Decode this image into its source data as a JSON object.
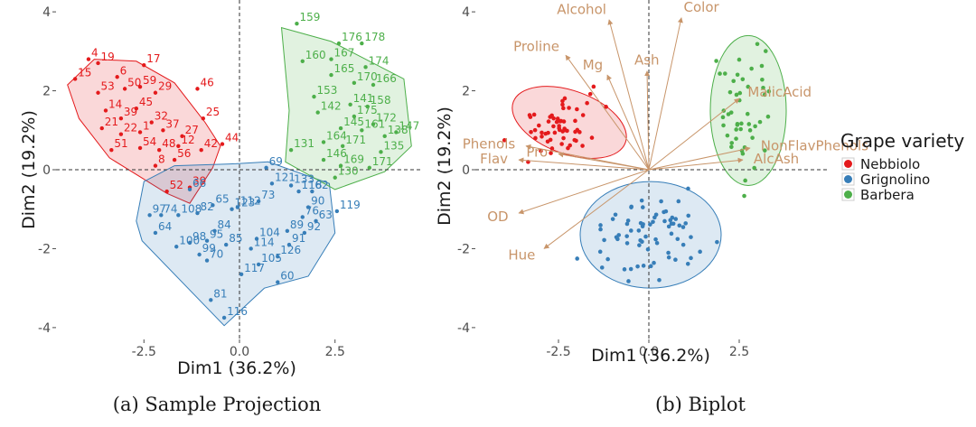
{
  "colors": {
    "nebbiolo": "#e41a1c",
    "grignolino": "#377eb8",
    "barbera": "#4daf4a",
    "arrow": "#c8956a"
  },
  "chart_data": [
    {
      "type": "scatter",
      "title": "",
      "caption": "(a) Sample Projection",
      "xlabel": "Dim1 (36.2%)",
      "ylabel": "Dim2 (19.2%)",
      "xlim": [
        -4.8,
        4.8
      ],
      "ylim": [
        -4.3,
        4.3
      ],
      "x_ticks": [
        -2.5,
        0.0,
        2.5
      ],
      "x_tick_labels": [
        "-2.5",
        "0.0",
        "2.5"
      ],
      "y_ticks": [
        4,
        2,
        0,
        -2,
        -4
      ],
      "y_tick_labels": [
        "4",
        "2",
        "0",
        "-2",
        "-4"
      ],
      "groups": [
        {
          "name": "Nebbiolo",
          "color": "#e41a1c",
          "hull": [
            [
              -4.5,
              2.15
            ],
            [
              -3.8,
              2.8
            ],
            [
              -2.7,
              2.75
            ],
            [
              -1.7,
              2.2
            ],
            [
              -0.9,
              1.2
            ],
            [
              -0.5,
              0.6
            ],
            [
              -0.7,
              0.05
            ],
            [
              -1.3,
              -0.85
            ],
            [
              -1.9,
              -0.6
            ],
            [
              -3.4,
              0.3
            ],
            [
              -4.2,
              1.3
            ]
          ],
          "labeled_points": [
            {
              "x": -4.3,
              "y": 2.3,
              "label": "15"
            },
            {
              "x": -3.95,
              "y": 2.8,
              "label": "4"
            },
            {
              "x": -3.7,
              "y": 2.7,
              "label": "19"
            },
            {
              "x": -3.2,
              "y": 2.35,
              "label": "6"
            },
            {
              "x": -2.5,
              "y": 2.65,
              "label": "17"
            },
            {
              "x": -1.1,
              "y": 2.05,
              "label": "46"
            },
            {
              "x": -3.7,
              "y": 1.95,
              "label": "53"
            },
            {
              "x": -3.0,
              "y": 2.05,
              "label": "50"
            },
            {
              "x": -2.6,
              "y": 2.1,
              "label": "59"
            },
            {
              "x": -2.2,
              "y": 1.95,
              "label": "29"
            },
            {
              "x": -3.5,
              "y": 1.5,
              "label": "14"
            },
            {
              "x": -3.1,
              "y": 1.3,
              "label": "39"
            },
            {
              "x": -2.7,
              "y": 1.55,
              "label": "45"
            },
            {
              "x": -2.3,
              "y": 1.2,
              "label": "32"
            },
            {
              "x": -0.95,
              "y": 1.3,
              "label": "25"
            },
            {
              "x": -3.6,
              "y": 1.05,
              "label": "21"
            },
            {
              "x": -3.1,
              "y": 0.9,
              "label": "22"
            },
            {
              "x": -2.6,
              "y": 0.95,
              "label": "1"
            },
            {
              "x": -2.0,
              "y": 1.0,
              "label": "37"
            },
            {
              "x": -1.5,
              "y": 0.85,
              "label": "27"
            },
            {
              "x": -0.45,
              "y": 0.65,
              "label": "44"
            },
            {
              "x": -3.35,
              "y": 0.5,
              "label": "51"
            },
            {
              "x": -2.6,
              "y": 0.55,
              "label": "54"
            },
            {
              "x": -2.1,
              "y": 0.5,
              "label": "48"
            },
            {
              "x": -1.6,
              "y": 0.6,
              "label": "12"
            },
            {
              "x": -1.0,
              "y": 0.5,
              "label": "42"
            },
            {
              "x": -1.7,
              "y": 0.25,
              "label": "56"
            },
            {
              "x": -1.3,
              "y": -0.45,
              "label": "39"
            },
            {
              "x": -1.9,
              "y": -0.55,
              "label": "52"
            },
            {
              "x": -2.2,
              "y": 0.1,
              "label": "8"
            }
          ]
        },
        {
          "name": "Grignolino",
          "color": "#377eb8",
          "hull": [
            [
              -2.5,
              -0.3
            ],
            [
              -1.7,
              0.1
            ],
            [
              -0.1,
              0.15
            ],
            [
              0.75,
              0.2
            ],
            [
              2.35,
              -0.35
            ],
            [
              2.5,
              -1.6
            ],
            [
              1.8,
              -2.7
            ],
            [
              0.65,
              -3.0
            ],
            [
              -0.4,
              -3.95
            ],
            [
              -2.55,
              -1.8
            ],
            [
              -2.7,
              -1.3
            ]
          ],
          "labeled_points": [
            {
              "x": -2.35,
              "y": -1.15,
              "label": "97"
            },
            {
              "x": -2.2,
              "y": -1.6,
              "label": "64"
            },
            {
              "x": -2.05,
              "y": -1.15,
              "label": "74"
            },
            {
              "x": -1.6,
              "y": -1.15,
              "label": "108"
            },
            {
              "x": -1.1,
              "y": -1.1,
              "label": "82"
            },
            {
              "x": -0.7,
              "y": -0.9,
              "label": "65"
            },
            {
              "x": -1.3,
              "y": -0.5,
              "label": "66"
            },
            {
              "x": -0.2,
              "y": -1.0,
              "label": "123"
            },
            {
              "x": -0.05,
              "y": -0.95,
              "label": "112"
            },
            {
              "x": 0.5,
              "y": -0.8,
              "label": "73"
            },
            {
              "x": 0.85,
              "y": -0.35,
              "label": "121"
            },
            {
              "x": 0.7,
              "y": 0.05,
              "label": "69"
            },
            {
              "x": 1.35,
              "y": -0.4,
              "label": "133"
            },
            {
              "x": 1.55,
              "y": -0.55,
              "label": "118"
            },
            {
              "x": 1.9,
              "y": -0.55,
              "label": "62"
            },
            {
              "x": 2.55,
              "y": -1.05,
              "label": "119"
            },
            {
              "x": 1.8,
              "y": -0.95,
              "label": "90"
            },
            {
              "x": 1.65,
              "y": -1.2,
              "label": "76"
            },
            {
              "x": 2.0,
              "y": -1.3,
              "label": "63"
            },
            {
              "x": 1.25,
              "y": -1.55,
              "label": "89"
            },
            {
              "x": 1.7,
              "y": -1.6,
              "label": "92"
            },
            {
              "x": 1.3,
              "y": -1.9,
              "label": "91"
            },
            {
              "x": -1.65,
              "y": -1.95,
              "label": "100"
            },
            {
              "x": -1.3,
              "y": -1.85,
              "label": "98"
            },
            {
              "x": -0.85,
              "y": -1.8,
              "label": "95"
            },
            {
              "x": -0.35,
              "y": -1.9,
              "label": "85"
            },
            {
              "x": 0.3,
              "y": -2.0,
              "label": "114"
            },
            {
              "x": 0.45,
              "y": -1.75,
              "label": "104"
            },
            {
              "x": -1.05,
              "y": -2.15,
              "label": "99"
            },
            {
              "x": -0.65,
              "y": -1.55,
              "label": "84"
            },
            {
              "x": -0.85,
              "y": -2.3,
              "label": "70"
            },
            {
              "x": 0.5,
              "y": -2.4,
              "label": "105"
            },
            {
              "x": 1.0,
              "y": -2.2,
              "label": "126"
            },
            {
              "x": 0.05,
              "y": -2.65,
              "label": "117"
            },
            {
              "x": 1.0,
              "y": -2.85,
              "label": "60"
            },
            {
              "x": -0.75,
              "y": -3.3,
              "label": "81"
            },
            {
              "x": -0.4,
              "y": -3.75,
              "label": "116"
            }
          ]
        },
        {
          "name": "Barbera",
          "color": "#4daf4a",
          "hull": [
            [
              1.1,
              3.6
            ],
            [
              2.4,
              3.25
            ],
            [
              4.3,
              2.3
            ],
            [
              4.5,
              0.6
            ],
            [
              3.8,
              -0.05
            ],
            [
              2.5,
              -0.5
            ],
            [
              1.2,
              0.2
            ],
            [
              1.3,
              1.5
            ]
          ],
          "labeled_points": [
            {
              "x": 1.5,
              "y": 3.7,
              "label": "159"
            },
            {
              "x": 2.6,
              "y": 3.2,
              "label": "176"
            },
            {
              "x": 3.2,
              "y": 3.2,
              "label": "178"
            },
            {
              "x": 1.65,
              "y": 2.75,
              "label": "160"
            },
            {
              "x": 2.4,
              "y": 2.8,
              "label": "167"
            },
            {
              "x": 3.3,
              "y": 2.6,
              "label": "174"
            },
            {
              "x": 2.4,
              "y": 2.4,
              "label": "165"
            },
            {
              "x": 3.0,
              "y": 2.2,
              "label": "170"
            },
            {
              "x": 3.5,
              "y": 2.15,
              "label": "166"
            },
            {
              "x": 1.95,
              "y": 1.85,
              "label": "153"
            },
            {
              "x": 2.9,
              "y": 1.65,
              "label": "141"
            },
            {
              "x": 3.35,
              "y": 1.6,
              "label": "158"
            },
            {
              "x": 2.05,
              "y": 1.45,
              "label": "142"
            },
            {
              "x": 3.0,
              "y": 1.35,
              "label": "175"
            },
            {
              "x": 3.5,
              "y": 1.15,
              "label": "172"
            },
            {
              "x": 2.65,
              "y": 1.05,
              "label": "145"
            },
            {
              "x": 3.2,
              "y": 1.0,
              "label": "161"
            },
            {
              "x": 4.1,
              "y": 0.95,
              "label": "147"
            },
            {
              "x": 3.8,
              "y": 0.85,
              "label": "138"
            },
            {
              "x": 2.2,
              "y": 0.7,
              "label": "164"
            },
            {
              "x": 2.7,
              "y": 0.6,
              "label": "171"
            },
            {
              "x": 3.7,
              "y": 0.45,
              "label": "135"
            },
            {
              "x": 1.35,
              "y": 0.5,
              "label": "131"
            },
            {
              "x": 2.65,
              "y": 0.1,
              "label": "169"
            },
            {
              "x": 2.2,
              "y": 0.25,
              "label": "146"
            },
            {
              "x": 2.5,
              "y": -0.2,
              "label": "130"
            },
            {
              "x": 3.4,
              "y": 0.05,
              "label": "171"
            }
          ]
        }
      ]
    },
    {
      "type": "scatter",
      "title": "",
      "caption": "(b) Biplot",
      "xlabel": "Dim1 (36.2%)",
      "ylabel": "Dim2 (19.2%)",
      "xlim": [
        -4.8,
        5.0
      ],
      "ylim": [
        -4.3,
        4.3
      ],
      "x_ticks": [
        -2.5,
        0.0,
        2.5
      ],
      "x_tick_labels": [
        "-2.5",
        "0.0",
        "2.5"
      ],
      "y_ticks": [
        4,
        2,
        0,
        -2,
        -4
      ],
      "y_tick_labels": [
        "4",
        "2",
        "0",
        "-2",
        "-4"
      ],
      "ellipses": [
        {
          "group": "Nebbiolo",
          "cx": -2.2,
          "cy": 1.2,
          "rx": 1.65,
          "ry": 0.8,
          "angle": 20
        },
        {
          "group": "Grignolino",
          "cx": 0.05,
          "cy": -1.65,
          "rx": 1.95,
          "ry": 1.35,
          "angle": 0
        },
        {
          "group": "Barbera",
          "cx": 2.75,
          "cy": 1.5,
          "rx": 1.05,
          "ry": 1.9,
          "angle": 0
        }
      ],
      "variables": [
        {
          "name": "Alcohol",
          "x": -1.1,
          "y": 3.8
        },
        {
          "name": "Color",
          "x": 0.9,
          "y": 3.85
        },
        {
          "name": "Proline",
          "x": -2.3,
          "y": 2.9
        },
        {
          "name": "Mg",
          "x": -1.15,
          "y": 2.4
        },
        {
          "name": "Ash",
          "x": -0.05,
          "y": 2.5
        },
        {
          "name": "MalicAcid",
          "x": 2.5,
          "y": 1.8
        },
        {
          "name": "NonFlavPhenols",
          "x": 2.8,
          "y": 0.55
        },
        {
          "name": "AlcAsh",
          "x": 2.6,
          "y": 0.25
        },
        {
          "name": "Phenols",
          "x": -3.4,
          "y": 0.6
        },
        {
          "name": "Flav",
          "x": -3.6,
          "y": 0.25
        },
        {
          "name": "Pro",
          "x": -2.5,
          "y": 0.4
        },
        {
          "name": "OD",
          "x": -3.6,
          "y": -1.1
        },
        {
          "name": "Hue",
          "x": -2.9,
          "y": -2.0
        }
      ],
      "legend": {
        "title": "Grape variety",
        "entries": [
          "Nebbiolo",
          "Grignolino",
          "Barbera"
        ],
        "position": "right"
      }
    }
  ]
}
